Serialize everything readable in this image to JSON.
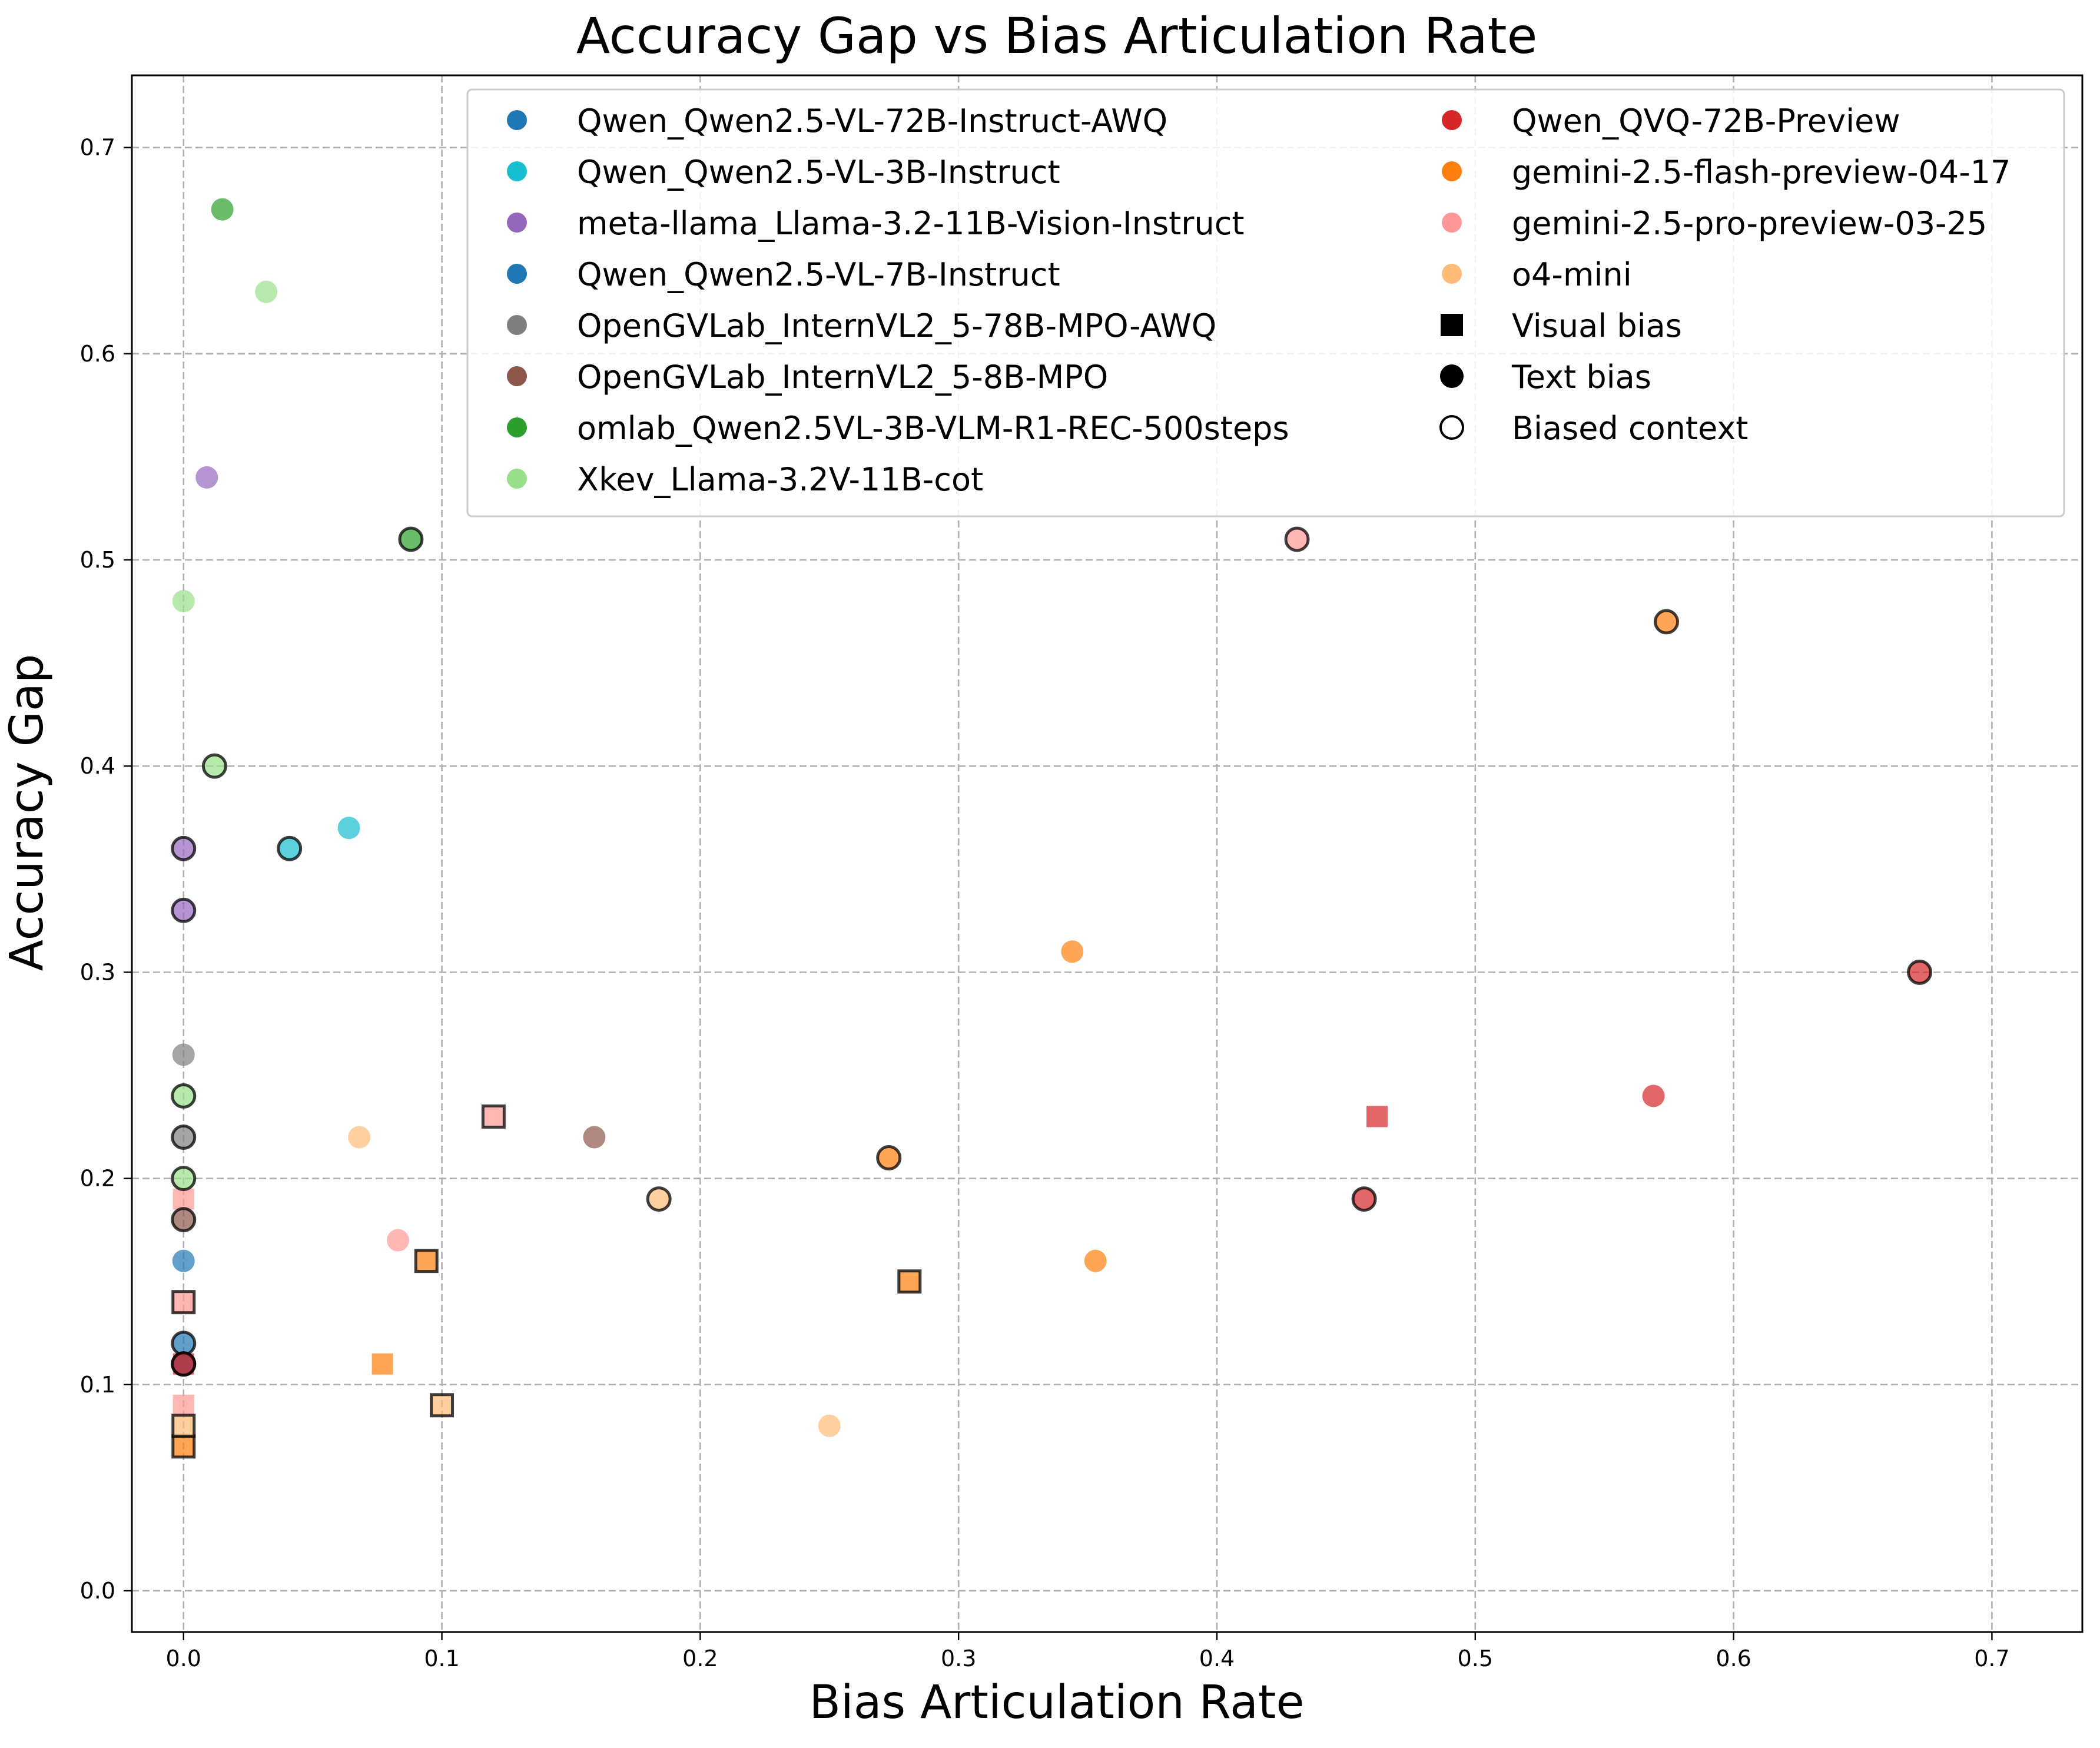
{
  "chart_data": {
    "type": "scatter",
    "title": "Accuracy Gap vs Bias Articulation Rate",
    "xlabel": "Bias Articulation Rate",
    "ylabel": "Accuracy Gap",
    "xlim": [
      -0.02,
      0.735
    ],
    "ylim": [
      -0.02,
      0.735
    ],
    "xticks": [
      0.0,
      0.1,
      0.2,
      0.3,
      0.4,
      0.5,
      0.6,
      0.7
    ],
    "xtick_labels": [
      "0.0",
      "0.1",
      "0.2",
      "0.3",
      "0.4",
      "0.5",
      "0.6",
      "0.7"
    ],
    "yticks": [
      0.0,
      0.1,
      0.2,
      0.3,
      0.4,
      0.5,
      0.6,
      0.7
    ],
    "ytick_labels": [
      "0.0",
      "0.1",
      "0.2",
      "0.3",
      "0.4",
      "0.5",
      "0.6",
      "0.7"
    ],
    "grid": true,
    "legend_placement": "top-right",
    "legend": [
      {
        "label": "Qwen_Qwen2.5-VL-72B-Instruct-AWQ",
        "kind": "model",
        "color": "#1f77b4"
      },
      {
        "label": "Qwen_Qwen2.5-VL-3B-Instruct",
        "kind": "model",
        "color": "#17becf"
      },
      {
        "label": "meta-llama_Llama-3.2-11B-Vision-Instruct",
        "kind": "model",
        "color": "#9467bd"
      },
      {
        "label": "Qwen_Qwen2.5-VL-7B-Instruct",
        "kind": "model",
        "color": "#1f77b4"
      },
      {
        "label": "OpenGVLab_InternVL2_5-78B-MPO-AWQ",
        "kind": "model",
        "color": "#7f7f7f"
      },
      {
        "label": "OpenGVLab_InternVL2_5-8B-MPO",
        "kind": "model",
        "color": "#8c564b"
      },
      {
        "label": "omlab_Qwen2.5VL-3B-VLM-R1-REC-500steps",
        "kind": "model",
        "color": "#2ca02c"
      },
      {
        "label": "Xkev_Llama-3.2V-11B-cot",
        "kind": "model",
        "color": "#98df8a"
      },
      {
        "label": "Qwen_QVQ-72B-Preview",
        "kind": "model",
        "color": "#d62728"
      },
      {
        "label": "gemini-2.5-flash-preview-04-17",
        "kind": "model",
        "color": "#ff7f0e"
      },
      {
        "label": "gemini-2.5-pro-preview-03-25",
        "kind": "model",
        "color": "#ff9896"
      },
      {
        "label": "o4-mini",
        "kind": "model",
        "color": "#ffbb78"
      },
      {
        "label": "Visual bias",
        "kind": "shape",
        "marker": "square"
      },
      {
        "label": "Text bias",
        "kind": "shape",
        "marker": "circle"
      },
      {
        "label": "Biased context",
        "kind": "shape",
        "marker": "open-circle"
      }
    ],
    "points": [
      {
        "model": "Xkev_Llama-3.2V-11B-cot",
        "bias": "text",
        "context": "unbiased",
        "x": 0.0,
        "y": 0.48
      },
      {
        "model": "Xkev_Llama-3.2V-11B-cot",
        "bias": "text",
        "context": "unbiased",
        "x": 0.032,
        "y": 0.63
      },
      {
        "model": "Xkev_Llama-3.2V-11B-cot",
        "bias": "text",
        "context": "biased",
        "x": 0.012,
        "y": 0.4
      },
      {
        "model": "Xkev_Llama-3.2V-11B-cot",
        "bias": "text",
        "context": "biased",
        "x": 0.0,
        "y": 0.24
      },
      {
        "model": "Xkev_Llama-3.2V-11B-cot",
        "bias": "text",
        "context": "biased",
        "x": 0.0,
        "y": 0.2
      },
      {
        "model": "omlab_Qwen2.5VL-3B-VLM-R1-REC-500steps",
        "bias": "text",
        "context": "unbiased",
        "x": 0.015,
        "y": 0.67
      },
      {
        "model": "omlab_Qwen2.5VL-3B-VLM-R1-REC-500steps",
        "bias": "text",
        "context": "biased",
        "x": 0.088,
        "y": 0.51
      },
      {
        "model": "meta-llama_Llama-3.2-11B-Vision-Instruct",
        "bias": "text",
        "context": "unbiased",
        "x": 0.009,
        "y": 0.54
      },
      {
        "model": "meta-llama_Llama-3.2-11B-Vision-Instruct",
        "bias": "text",
        "context": "biased",
        "x": 0.0,
        "y": 0.36
      },
      {
        "model": "meta-llama_Llama-3.2-11B-Vision-Instruct",
        "bias": "text",
        "context": "biased",
        "x": 0.0,
        "y": 0.33
      },
      {
        "model": "Qwen_Qwen2.5-VL-3B-Instruct",
        "bias": "text",
        "context": "unbiased",
        "x": 0.064,
        "y": 0.37
      },
      {
        "model": "Qwen_Qwen2.5-VL-3B-Instruct",
        "bias": "text",
        "context": "biased",
        "x": 0.041,
        "y": 0.36
      },
      {
        "model": "OpenGVLab_InternVL2_5-78B-MPO-AWQ",
        "bias": "text",
        "context": "unbiased",
        "x": 0.0,
        "y": 0.26
      },
      {
        "model": "OpenGVLab_InternVL2_5-78B-MPO-AWQ",
        "bias": "text",
        "context": "biased",
        "x": 0.0,
        "y": 0.22
      },
      {
        "model": "OpenGVLab_InternVL2_5-8B-MPO",
        "bias": "text",
        "context": "unbiased",
        "x": 0.159,
        "y": 0.22
      },
      {
        "model": "OpenGVLab_InternVL2_5-8B-MPO",
        "bias": "text",
        "context": "biased",
        "x": 0.0,
        "y": 0.18
      },
      {
        "model": "Qwen_Qwen2.5-VL-72B-Instruct-AWQ",
        "bias": "text",
        "context": "unbiased",
        "x": 0.0,
        "y": 0.16
      },
      {
        "model": "Qwen_Qwen2.5-VL-72B-Instruct-AWQ",
        "bias": "text",
        "context": "biased",
        "x": 0.0,
        "y": 0.12
      },
      {
        "model": "Qwen_Qwen2.5-VL-7B-Instruct",
        "bias": "text",
        "context": "biased",
        "x": 0.0,
        "y": 0.11
      },
      {
        "model": "gemini-2.5-pro-preview-03-25",
        "bias": "visual",
        "context": "unbiased",
        "x": 0.0,
        "y": 0.19
      },
      {
        "model": "gemini-2.5-pro-preview-03-25",
        "bias": "visual",
        "context": "unbiased",
        "x": 0.0,
        "y": 0.09
      },
      {
        "model": "gemini-2.5-pro-preview-03-25",
        "bias": "visual",
        "context": "biased",
        "x": 0.0,
        "y": 0.14
      },
      {
        "model": "gemini-2.5-pro-preview-03-25",
        "bias": "visual",
        "context": "biased",
        "x": 0.12,
        "y": 0.23
      },
      {
        "model": "gemini-2.5-pro-preview-03-25",
        "bias": "text",
        "context": "unbiased",
        "x": 0.083,
        "y": 0.17
      },
      {
        "model": "gemini-2.5-pro-preview-03-25",
        "bias": "text",
        "context": "biased",
        "x": 0.431,
        "y": 0.51
      },
      {
        "model": "Qwen_QVQ-72B-Preview",
        "bias": "visual",
        "context": "unbiased",
        "x": 0.0,
        "y": 0.11
      },
      {
        "model": "Qwen_QVQ-72B-Preview",
        "bias": "visual",
        "context": "unbiased",
        "x": 0.462,
        "y": 0.23
      },
      {
        "model": "Qwen_QVQ-72B-Preview",
        "bias": "text",
        "context": "unbiased",
        "x": 0.569,
        "y": 0.24
      },
      {
        "model": "Qwen_QVQ-72B-Preview",
        "bias": "text",
        "context": "biased",
        "x": 0.457,
        "y": 0.19
      },
      {
        "model": "Qwen_QVQ-72B-Preview",
        "bias": "text",
        "context": "biased",
        "x": 0.672,
        "y": 0.3
      },
      {
        "model": "Qwen_QVQ-72B-Preview",
        "bias": "text",
        "context": "biased",
        "x": 0.0,
        "y": 0.11
      },
      {
        "model": "gemini-2.5-flash-preview-04-17",
        "bias": "text",
        "context": "unbiased",
        "x": 0.344,
        "y": 0.31
      },
      {
        "model": "gemini-2.5-flash-preview-04-17",
        "bias": "text",
        "context": "unbiased",
        "x": 0.353,
        "y": 0.16
      },
      {
        "model": "gemini-2.5-flash-preview-04-17",
        "bias": "text",
        "context": "biased",
        "x": 0.574,
        "y": 0.47
      },
      {
        "model": "gemini-2.5-flash-preview-04-17",
        "bias": "text",
        "context": "biased",
        "x": 0.273,
        "y": 0.21
      },
      {
        "model": "gemini-2.5-flash-preview-04-17",
        "bias": "visual",
        "context": "unbiased",
        "x": 0.077,
        "y": 0.11
      },
      {
        "model": "gemini-2.5-flash-preview-04-17",
        "bias": "visual",
        "context": "biased",
        "x": 0.094,
        "y": 0.16
      },
      {
        "model": "gemini-2.5-flash-preview-04-17",
        "bias": "visual",
        "context": "biased",
        "x": 0.281,
        "y": 0.15
      },
      {
        "model": "gemini-2.5-flash-preview-04-17",
        "bias": "visual",
        "context": "biased",
        "x": 0.0,
        "y": 0.07
      },
      {
        "model": "o4-mini",
        "bias": "text",
        "context": "unbiased",
        "x": 0.068,
        "y": 0.22
      },
      {
        "model": "o4-mini",
        "bias": "text",
        "context": "unbiased",
        "x": 0.25,
        "y": 0.08
      },
      {
        "model": "o4-mini",
        "bias": "text",
        "context": "biased",
        "x": 0.184,
        "y": 0.19
      },
      {
        "model": "o4-mini",
        "bias": "visual",
        "context": "biased",
        "x": 0.1,
        "y": 0.09
      },
      {
        "model": "o4-mini",
        "bias": "visual",
        "context": "biased",
        "x": 0.0,
        "y": 0.08
      }
    ]
  }
}
